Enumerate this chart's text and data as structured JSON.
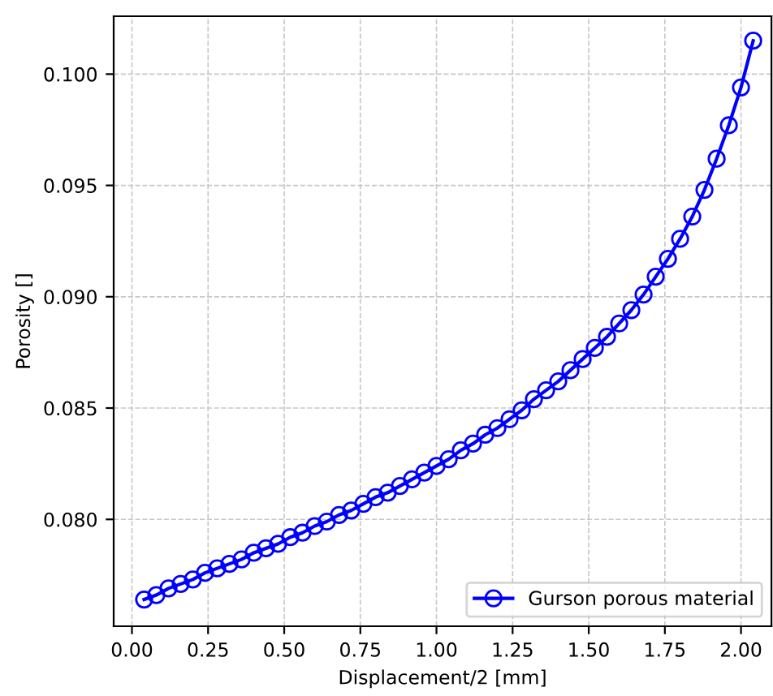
{
  "chart_data": {
    "type": "line",
    "xlabel": "Displacement/2 [mm]",
    "ylabel": "Porosity []",
    "x": [
      0.04,
      0.08,
      0.12,
      0.16,
      0.2,
      0.24,
      0.28,
      0.32,
      0.36,
      0.4,
      0.44,
      0.48,
      0.52,
      0.56,
      0.6,
      0.64,
      0.68,
      0.72,
      0.76,
      0.8,
      0.84,
      0.88,
      0.92,
      0.96,
      1.0,
      1.04,
      1.08,
      1.12,
      1.16,
      1.2,
      1.24,
      1.28,
      1.32,
      1.36,
      1.4,
      1.44,
      1.48,
      1.52,
      1.56,
      1.6,
      1.64,
      1.68,
      1.72,
      1.76,
      1.8,
      1.84,
      1.88,
      1.92,
      1.96,
      2.0,
      2.04
    ],
    "series": [
      {
        "name": "Gurson porous material",
        "color": "#0000ff",
        "values": [
          0.0764,
          0.0766,
          0.0769,
          0.0771,
          0.0773,
          0.0776,
          0.0778,
          0.078,
          0.0782,
          0.0785,
          0.0787,
          0.0789,
          0.0792,
          0.0794,
          0.0797,
          0.0799,
          0.0802,
          0.0804,
          0.0807,
          0.081,
          0.0812,
          0.0815,
          0.0818,
          0.0821,
          0.0824,
          0.0827,
          0.0831,
          0.0834,
          0.0838,
          0.0841,
          0.0845,
          0.0849,
          0.0854,
          0.0858,
          0.0862,
          0.0867,
          0.0872,
          0.0877,
          0.0882,
          0.0888,
          0.0894,
          0.0901,
          0.0909,
          0.0917,
          0.0926,
          0.0936,
          0.0948,
          0.0962,
          0.0977,
          0.0994,
          0.1015
        ]
      }
    ],
    "xlim": [
      -0.06,
      2.1
    ],
    "ylim": [
      0.0752,
      0.1026
    ],
    "xticks": [
      {
        "value": 0,
        "label": "0.00"
      },
      0.25,
      {
        "value": 0.5,
        "label": "0.50"
      },
      0.75,
      {
        "value": 1,
        "label": "1.00"
      },
      1.25,
      {
        "value": 1.5,
        "label": "1.50"
      },
      1.75,
      {
        "value": 2,
        "label": "2.00"
      }
    ],
    "yticks": [
      {
        "value": 0.08,
        "label": "0.080"
      },
      0.085,
      {
        "value": 0.09,
        "label": "0.090"
      },
      0.095,
      {
        "value": 0.1,
        "label": "0.100"
      }
    ],
    "grid": true,
    "legend": "bottom right",
    "marker": "circle",
    "line_style": "solid"
  }
}
